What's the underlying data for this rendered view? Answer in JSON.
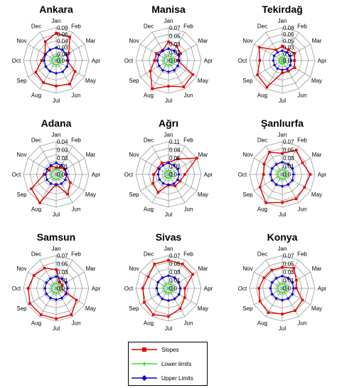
{
  "chart_data": {
    "type": "radar",
    "axes": [
      "Jan",
      "Feb",
      "Mar",
      "Apr",
      "May",
      "Jun",
      "Jul",
      "Aug",
      "Sep",
      "Oct",
      "Nov",
      "Dec"
    ],
    "series_names": [
      "Slopes",
      "Lower limits",
      "Upper Limits"
    ],
    "colors": {
      "Slopes": "#e00000",
      "Lower limits": "#33dd33",
      "Upper Limits": "#0000cc"
    },
    "panels": [
      {
        "title": "Ankara",
        "ticks": [
          "0.09",
          "0.06",
          "0.04",
          "0.03",
          "0.01",
          "0.0"
        ],
        "rmax": 0.09,
        "slopes": [
          0.075,
          0.075,
          0.04,
          0.03,
          0.06,
          0.075,
          0.07,
          0.07,
          0.065,
          0.04,
          0.035,
          0.06
        ],
        "lower": [
          0.012,
          0.012,
          0.012,
          0.012,
          0.012,
          0.012,
          0.012,
          0.012,
          0.012,
          0.012,
          0.012,
          0.012
        ],
        "upper": [
          0.035,
          0.034,
          0.032,
          0.033,
          0.034,
          0.036,
          0.035,
          0.034,
          0.033,
          0.033,
          0.034,
          0.034
        ]
      },
      {
        "title": "Manisa",
        "ticks": [
          "0.07",
          "0.05",
          "0.03",
          "0.01",
          "0.0"
        ],
        "rmax": 0.07,
        "slopes": [
          0.04,
          0.035,
          0.03,
          0.02,
          0.06,
          0.065,
          0.055,
          0.07,
          0.045,
          0.03,
          0.03,
          0.025
        ],
        "lower": [
          0.01,
          0.01,
          0.01,
          0.01,
          0.01,
          0.01,
          0.01,
          0.01,
          0.01,
          0.01,
          0.01,
          0.01
        ],
        "upper": [
          0.025,
          0.024,
          0.024,
          0.023,
          0.023,
          0.024,
          0.024,
          0.024,
          0.023,
          0.024,
          0.024,
          0.024
        ]
      },
      {
        "title": "Tekirdağ",
        "ticks": [
          "0.08",
          "0.06",
          "0.05",
          "0.03",
          "0.02",
          "0.0"
        ],
        "rmax": 0.08,
        "slopes": [
          0.035,
          0.03,
          0.035,
          0.03,
          0.035,
          0.03,
          0.03,
          0.075,
          0.07,
          0.055,
          0.065,
          0.03
        ],
        "lower": [
          0.008,
          0.008,
          0.008,
          0.008,
          0.008,
          0.008,
          0.008,
          0.008,
          0.008,
          0.008,
          0.008,
          0.008
        ],
        "upper": [
          0.024,
          0.023,
          0.022,
          0.022,
          0.023,
          0.024,
          0.023,
          0.023,
          0.022,
          0.022,
          0.023,
          0.023
        ]
      },
      {
        "title": "Adana",
        "ticks": [
          "0.04",
          "0.03",
          "0.02",
          "0.01",
          "0.0"
        ],
        "rmax": 0.04,
        "slopes": [
          0.008,
          0.01,
          0.012,
          0.012,
          0.02,
          0.028,
          0.012,
          0.04,
          0.035,
          0.015,
          0.01,
          0.012
        ],
        "lower": [
          0.006,
          0.006,
          0.006,
          0.006,
          0.006,
          0.006,
          0.006,
          0.006,
          0.006,
          0.006,
          0.006,
          0.006
        ],
        "upper": [
          0.014,
          0.013,
          0.013,
          0.013,
          0.013,
          0.013,
          0.013,
          0.013,
          0.013,
          0.013,
          0.013,
          0.013
        ]
      },
      {
        "title": "Ağrı",
        "ticks": [
          "0.11",
          "0.08",
          "0.05",
          "0.02",
          "0.0"
        ],
        "rmax": 0.11,
        "slopes": [
          0.04,
          0.06,
          0.11,
          0.055,
          0.045,
          0.045,
          0.035,
          0.07,
          0.06,
          0.05,
          0.04,
          0.045
        ],
        "lower": [
          0.013,
          0.013,
          0.013,
          0.013,
          0.013,
          0.013,
          0.013,
          0.013,
          0.013,
          0.013,
          0.013,
          0.013
        ],
        "upper": [
          0.038,
          0.036,
          0.036,
          0.035,
          0.036,
          0.036,
          0.036,
          0.035,
          0.035,
          0.035,
          0.036,
          0.036
        ]
      },
      {
        "title": "Şanlıurfa",
        "ticks": [
          "0.07",
          "0.05",
          "0.03",
          "0.01",
          "0.0"
        ],
        "rmax": 0.07,
        "slopes": [
          0.045,
          0.06,
          0.05,
          0.06,
          0.055,
          0.06,
          0.06,
          0.07,
          0.055,
          0.04,
          0.045,
          0.055
        ],
        "lower": [
          0.01,
          0.01,
          0.01,
          0.01,
          0.01,
          0.01,
          0.01,
          0.01,
          0.01,
          0.01,
          0.01,
          0.01
        ],
        "upper": [
          0.026,
          0.025,
          0.025,
          0.024,
          0.025,
          0.025,
          0.025,
          0.025,
          0.025,
          0.025,
          0.025,
          0.025
        ]
      },
      {
        "title": "Samsun",
        "ticks": [
          "0.07",
          "0.05",
          "0.03",
          "0.01",
          "0.0"
        ],
        "rmax": 0.07,
        "slopes": [
          0.04,
          0.015,
          0.015,
          0.01,
          0.05,
          0.065,
          0.065,
          0.065,
          0.065,
          0.06,
          0.055,
          0.05
        ],
        "lower": [
          0.01,
          0.01,
          0.01,
          0.01,
          0.01,
          0.01,
          0.01,
          0.01,
          0.01,
          0.01,
          0.01,
          0.01
        ],
        "upper": [
          0.025,
          0.024,
          0.024,
          0.024,
          0.024,
          0.024,
          0.024,
          0.024,
          0.024,
          0.024,
          0.024,
          0.024
        ]
      },
      {
        "title": "Sivas",
        "ticks": [
          "0.07",
          "0.05",
          "0.03",
          "0.01",
          "0.0"
        ],
        "rmax": 0.07,
        "slopes": [
          0.06,
          0.06,
          0.06,
          0.035,
          0.04,
          0.05,
          0.06,
          0.065,
          0.06,
          0.055,
          0.05,
          0.06
        ],
        "lower": [
          0.01,
          0.01,
          0.01,
          0.01,
          0.01,
          0.01,
          0.01,
          0.01,
          0.01,
          0.01,
          0.01,
          0.01
        ],
        "upper": [
          0.027,
          0.026,
          0.025,
          0.025,
          0.026,
          0.026,
          0.026,
          0.026,
          0.025,
          0.025,
          0.026,
          0.026
        ]
      },
      {
        "title": "Konya",
        "ticks": [
          "0.07",
          "0.05",
          "0.03",
          "0.01",
          "0.0"
        ],
        "rmax": 0.07,
        "slopes": [
          0.045,
          0.05,
          0.035,
          0.03,
          0.05,
          0.055,
          0.055,
          0.06,
          0.055,
          0.05,
          0.045,
          0.045
        ],
        "lower": [
          0.01,
          0.01,
          0.01,
          0.01,
          0.01,
          0.01,
          0.01,
          0.01,
          0.01,
          0.01,
          0.01,
          0.01
        ],
        "upper": [
          0.026,
          0.025,
          0.025,
          0.024,
          0.025,
          0.025,
          0.025,
          0.025,
          0.025,
          0.025,
          0.025,
          0.025
        ]
      }
    ]
  }
}
